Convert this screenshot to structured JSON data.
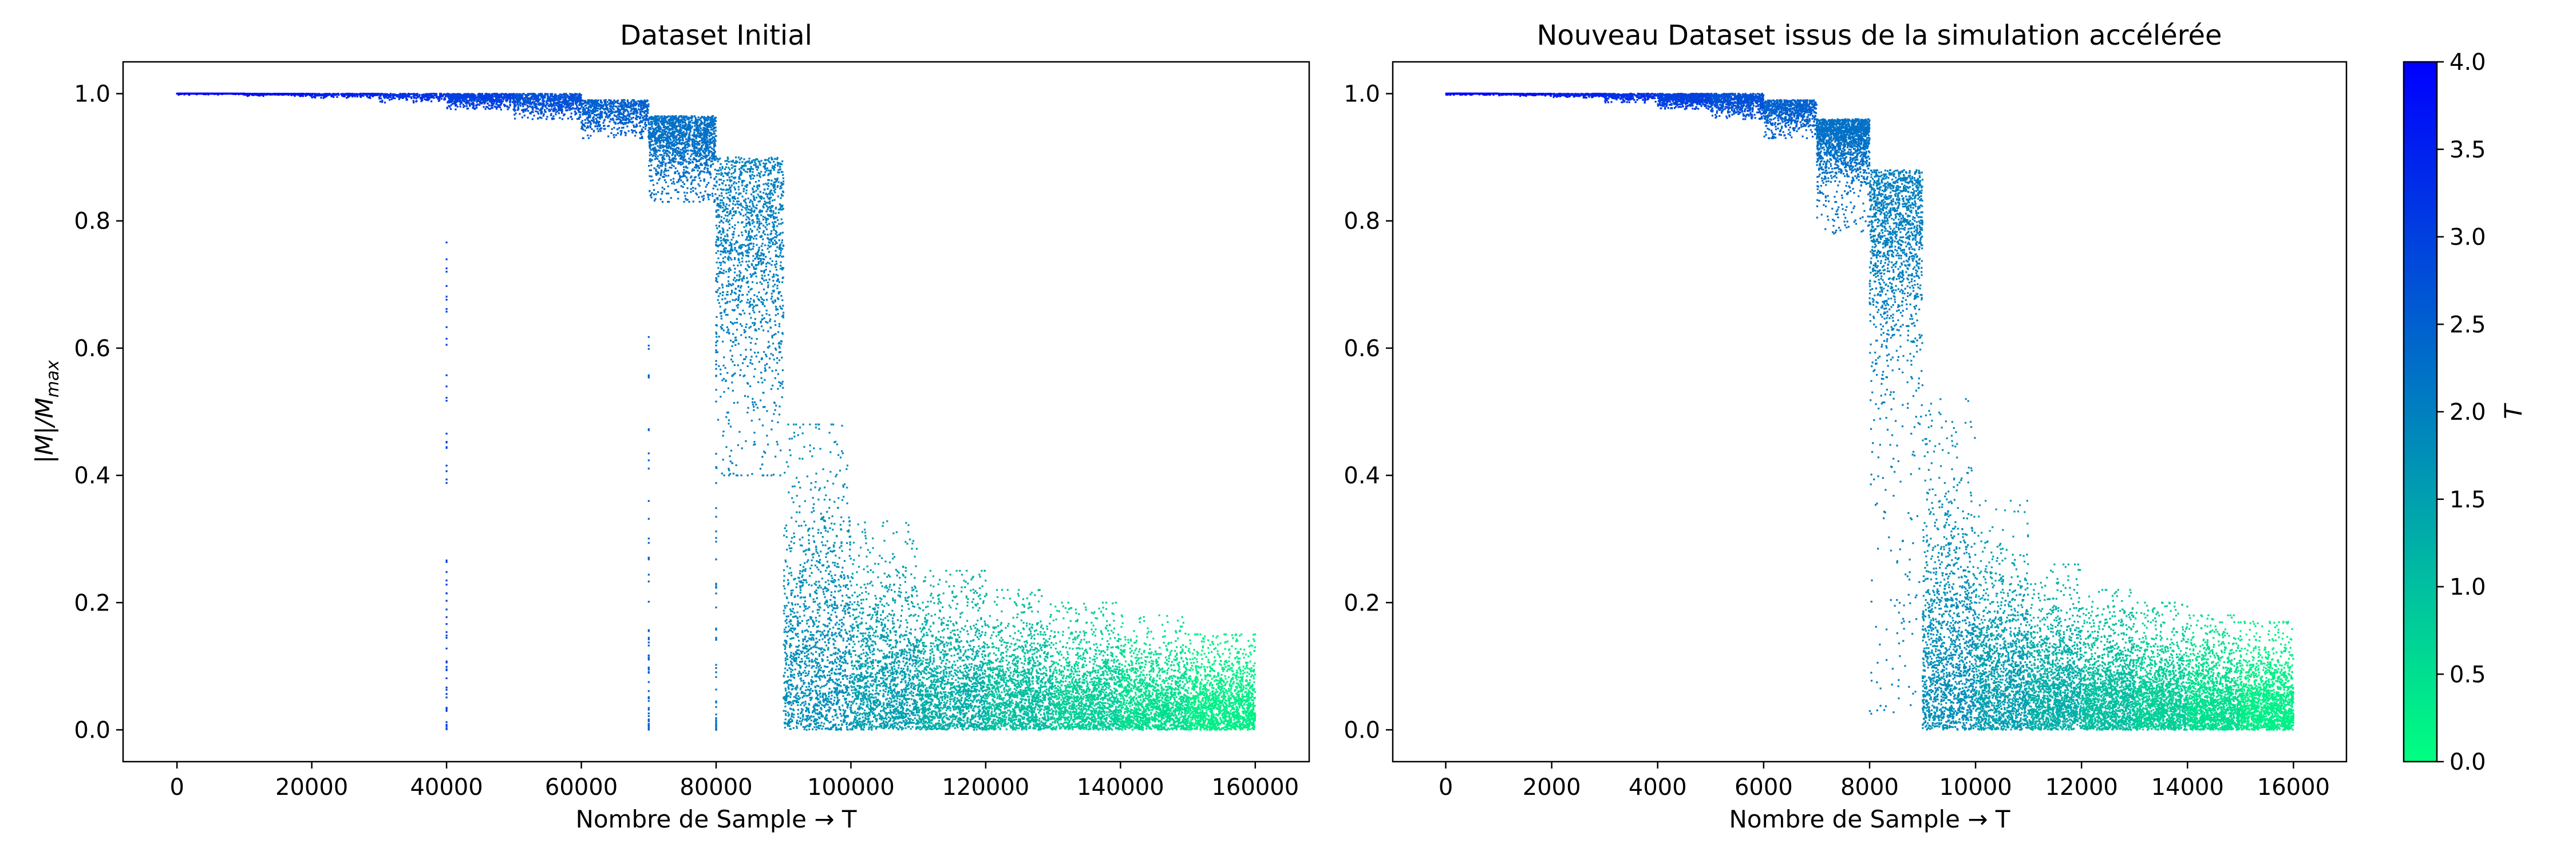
{
  "chart_data": [
    {
      "type": "scatter",
      "title": "Dataset Initial",
      "xlabel": "Nombre de Sample → T",
      "ylabel": "|M|/M",
      "ylabel_sub": "max",
      "xlim": [
        -8000,
        168000
      ],
      "ylim": [
        -0.05,
        1.05
      ],
      "xticks": [
        "0",
        "20000",
        "40000",
        "60000",
        "80000",
        "100000",
        "120000",
        "140000",
        "160000"
      ],
      "yticks": [
        "0.0",
        "0.2",
        "0.4",
        "0.6",
        "0.8",
        "1.0"
      ],
      "colored_by": "T",
      "segment_width": 10000,
      "segments": [
        {
          "x_start": 0,
          "x_end": 10000,
          "T": 4.0,
          "y_mean": 1.0,
          "y_min": 0.998,
          "y_max": 1.0
        },
        {
          "x_start": 10000,
          "x_end": 20000,
          "T": 3.75,
          "y_mean": 0.999,
          "y_min": 0.996,
          "y_max": 1.0
        },
        {
          "x_start": 20000,
          "x_end": 30000,
          "T": 3.5,
          "y_mean": 0.998,
          "y_min": 0.993,
          "y_max": 1.0
        },
        {
          "x_start": 30000,
          "x_end": 40000,
          "T": 3.25,
          "y_mean": 0.995,
          "y_min": 0.985,
          "y_max": 1.0
        },
        {
          "x_start": 40000,
          "x_end": 50000,
          "T": 3.0,
          "y_mean": 0.99,
          "y_min": 0.975,
          "y_max": 1.0
        },
        {
          "x_start": 50000,
          "x_end": 60000,
          "T": 2.75,
          "y_mean": 0.983,
          "y_min": 0.96,
          "y_max": 1.0
        },
        {
          "x_start": 60000,
          "x_end": 70000,
          "T": 2.5,
          "y_mean": 0.965,
          "y_min": 0.93,
          "y_max": 0.99
        },
        {
          "x_start": 70000,
          "x_end": 80000,
          "T": 2.25,
          "y_mean": 0.91,
          "y_min": 0.83,
          "y_max": 0.965
        },
        {
          "x_start": 80000,
          "x_end": 90000,
          "T": 2.0,
          "y_mean": 0.7,
          "y_min": 0.4,
          "y_max": 0.9
        },
        {
          "x_start": 90000,
          "x_end": 100000,
          "T": 1.75,
          "y_mean": 0.15,
          "y_min": 0.0,
          "y_max": 0.48
        },
        {
          "x_start": 100000,
          "x_end": 110000,
          "T": 1.5,
          "y_mean": 0.1,
          "y_min": 0.0,
          "y_max": 0.33
        },
        {
          "x_start": 110000,
          "x_end": 120000,
          "T": 1.25,
          "y_mean": 0.08,
          "y_min": 0.0,
          "y_max": 0.25
        },
        {
          "x_start": 120000,
          "x_end": 130000,
          "T": 1.0,
          "y_mean": 0.07,
          "y_min": 0.0,
          "y_max": 0.22
        },
        {
          "x_start": 130000,
          "x_end": 140000,
          "T": 0.75,
          "y_mean": 0.06,
          "y_min": 0.0,
          "y_max": 0.2
        },
        {
          "x_start": 140000,
          "x_end": 150000,
          "T": 0.5,
          "y_mean": 0.055,
          "y_min": 0.0,
          "y_max": 0.18
        },
        {
          "x_start": 150000,
          "x_end": 160000,
          "T": 0.25,
          "y_mean": 0.05,
          "y_min": 0.0,
          "y_max": 0.15
        }
      ],
      "vertical_outlier_lines": [
        {
          "x": 40000,
          "T": 3.0,
          "y_min": 0.0,
          "y_max": 0.77
        },
        {
          "x": 70000,
          "T": 2.5,
          "y_min": 0.0,
          "y_max": 0.62
        },
        {
          "x": 80000,
          "T": 2.25,
          "y_min": 0.0,
          "y_max": 0.8
        }
      ]
    },
    {
      "type": "scatter",
      "title": "Nouveau Dataset issus de la simulation accélérée",
      "xlabel": "Nombre de Sample → T",
      "ylabel": "",
      "xlim": [
        -1000,
        17000
      ],
      "ylim": [
        -0.05,
        1.05
      ],
      "xticks": [
        "0",
        "2000",
        "4000",
        "6000",
        "8000",
        "10000",
        "12000",
        "14000",
        "16000"
      ],
      "yticks": [
        "0.0",
        "0.2",
        "0.4",
        "0.6",
        "0.8",
        "1.0"
      ],
      "colored_by": "T",
      "segment_width": 1000,
      "segments": [
        {
          "x_start": 0,
          "x_end": 1000,
          "T": 4.0,
          "y_mean": 1.0,
          "y_min": 0.998,
          "y_max": 1.0
        },
        {
          "x_start": 1000,
          "x_end": 2000,
          "T": 3.75,
          "y_mean": 0.999,
          "y_min": 0.996,
          "y_max": 1.0
        },
        {
          "x_start": 2000,
          "x_end": 3000,
          "T": 3.5,
          "y_mean": 0.998,
          "y_min": 0.993,
          "y_max": 1.0
        },
        {
          "x_start": 3000,
          "x_end": 4000,
          "T": 3.25,
          "y_mean": 0.995,
          "y_min": 0.985,
          "y_max": 1.0
        },
        {
          "x_start": 4000,
          "x_end": 5000,
          "T": 3.0,
          "y_mean": 0.99,
          "y_min": 0.975,
          "y_max": 1.0
        },
        {
          "x_start": 5000,
          "x_end": 6000,
          "T": 2.75,
          "y_mean": 0.983,
          "y_min": 0.96,
          "y_max": 1.0
        },
        {
          "x_start": 6000,
          "x_end": 7000,
          "T": 2.5,
          "y_mean": 0.965,
          "y_min": 0.93,
          "y_max": 0.99
        },
        {
          "x_start": 7000,
          "x_end": 8000,
          "T": 2.25,
          "y_mean": 0.91,
          "y_min": 0.78,
          "y_max": 0.96
        },
        {
          "x_start": 8000,
          "x_end": 9000,
          "T": 2.0,
          "y_mean": 0.72,
          "y_min": 0.02,
          "y_max": 0.88
        },
        {
          "x_start": 9000,
          "x_end": 10000,
          "T": 1.75,
          "y_mean": 0.15,
          "y_min": 0.0,
          "y_max": 0.52
        },
        {
          "x_start": 10000,
          "x_end": 11000,
          "T": 1.5,
          "y_mean": 0.1,
          "y_min": 0.0,
          "y_max": 0.36
        },
        {
          "x_start": 11000,
          "x_end": 12000,
          "T": 1.25,
          "y_mean": 0.08,
          "y_min": 0.0,
          "y_max": 0.26
        },
        {
          "x_start": 12000,
          "x_end": 13000,
          "T": 1.0,
          "y_mean": 0.07,
          "y_min": 0.0,
          "y_max": 0.22
        },
        {
          "x_start": 13000,
          "x_end": 14000,
          "T": 0.75,
          "y_mean": 0.06,
          "y_min": 0.0,
          "y_max": 0.2
        },
        {
          "x_start": 14000,
          "x_end": 15000,
          "T": 0.5,
          "y_mean": 0.055,
          "y_min": 0.0,
          "y_max": 0.18
        },
        {
          "x_start": 15000,
          "x_end": 16000,
          "T": 0.25,
          "y_mean": 0.05,
          "y_min": 0.0,
          "y_max": 0.17
        }
      ],
      "vertical_outlier_lines": []
    }
  ],
  "colorbar": {
    "label": "T",
    "range": [
      0.0,
      4.0
    ],
    "ticks": [
      "0.0",
      "0.5",
      "1.0",
      "1.5",
      "2.0",
      "2.5",
      "3.0",
      "3.5",
      "4.0"
    ],
    "colormap": "winter",
    "color_low": "#00ff80",
    "color_high": "#0000ff"
  }
}
